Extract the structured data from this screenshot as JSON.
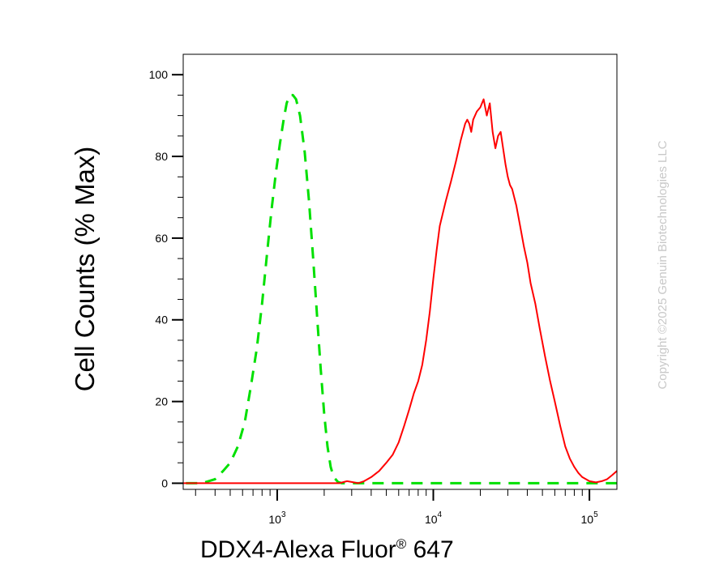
{
  "chart_data": {
    "type": "line",
    "xscale": "log",
    "xlim": [
      250,
      150000
    ],
    "ylim": [
      -1.5,
      105
    ],
    "xlabel": "DDX4-Alexa Fluor",
    "xlabel_sup": "®",
    "xlabel_tail": " 647",
    "ylabel": "Cell Counts (% Max)",
    "y_ticks": [
      0,
      20,
      40,
      60,
      80,
      100
    ],
    "y_tick_labels": [
      "0",
      "20",
      "40",
      "60",
      "80",
      "100"
    ],
    "x_major_ticks": [
      1000,
      10000,
      100000
    ],
    "x_tick_base": "10",
    "x_tick_exponents": [
      "3",
      "4",
      "5"
    ],
    "grid": false,
    "legend": "none",
    "watermark": "Copyright ©2025 Genuin Biotechnologies LLC",
    "series": [
      {
        "color": "#00e000",
        "dash": "dashed",
        "x": [
          260,
          330,
          400,
          450,
          500,
          560,
          620,
          680,
          740,
          800,
          860,
          920,
          980,
          1040,
          1100,
          1150,
          1200,
          1260,
          1320,
          1400,
          1500,
          1600,
          1700,
          1800,
          1900,
          2000,
          2100,
          2200,
          2300,
          2450,
          2600,
          3000,
          5000,
          10000,
          30000,
          80000,
          150000
        ],
        "y": [
          0,
          0,
          1,
          3,
          5,
          9,
          15,
          24,
          33,
          44,
          56,
          67,
          76,
          83,
          89,
          93,
          95,
          95,
          94,
          90,
          81,
          69,
          55,
          41,
          28,
          17,
          9,
          4,
          1.5,
          0.3,
          0,
          0,
          0,
          0,
          0,
          0,
          0
        ]
      },
      {
        "color": "#ff0000",
        "dash": "solid",
        "x": [
          250,
          2500,
          2800,
          3100,
          3300,
          3600,
          4000,
          4500,
          5000,
          5500,
          6000,
          6500,
          7000,
          7500,
          8000,
          8500,
          9000,
          9500,
          10000,
          10500,
          11000,
          12000,
          13000,
          14000,
          15000,
          16000,
          16500,
          17000,
          17500,
          18000,
          19000,
          20000,
          21000,
          21500,
          22000,
          23000,
          24000,
          25000,
          26000,
          27000,
          28000,
          29000,
          30000,
          31000,
          32000,
          34000,
          36000,
          38000,
          40000,
          42000,
          45000,
          48000,
          52000,
          56000,
          60000,
          65000,
          70000,
          75000,
          80000,
          85000,
          90000,
          100000,
          110000,
          120000,
          130000,
          140000,
          150000
        ],
        "y": [
          0,
          0,
          0.5,
          0.2,
          0,
          0.5,
          1.5,
          3,
          5,
          7,
          10,
          14,
          18,
          22,
          25,
          29,
          35,
          42,
          50,
          57,
          63,
          69,
          74,
          79,
          84,
          88,
          89,
          88,
          86,
          89,
          91,
          92,
          94,
          92,
          90,
          93,
          86,
          82,
          85,
          86,
          82,
          78,
          75,
          73,
          72,
          68,
          63,
          58,
          54,
          49,
          44,
          38,
          31,
          25,
          20,
          14,
          9,
          6,
          4,
          2.5,
          1.5,
          0.5,
          0.2,
          0.5,
          1,
          2,
          3
        ]
      }
    ]
  }
}
